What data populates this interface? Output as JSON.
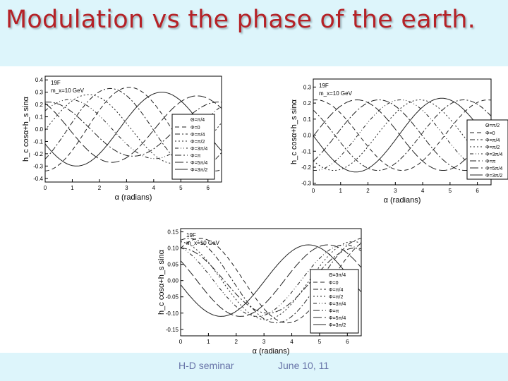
{
  "slide": {
    "title": "Modulation vs the phase of the earth.",
    "footer_left": "H-D seminar",
    "footer_date": "June 10, 11"
  },
  "chart_data": [
    {
      "type": "line",
      "ylabel": "h_c cosα+h_s sinα",
      "xlabel": "α (radians)",
      "annotation_lines": [
        "19F",
        "m_x=10 GeV"
      ],
      "xlim": [
        0,
        6.5
      ],
      "ylim": [
        -0.43,
        0.43
      ],
      "xticks": [
        0,
        1,
        2,
        3,
        4,
        5,
        6
      ],
      "yticks": [
        0.4,
        0.3,
        0.2,
        0.1,
        0.0,
        -0.1,
        -0.2,
        -0.3,
        -0.4
      ],
      "ytick_labels": [
        "0.4",
        "0.3",
        "0.2",
        "0.1",
        "0.0",
        "-0.1",
        "-0.2",
        "-0.3",
        "-0.4"
      ],
      "legend": {
        "position": "right",
        "header": "Θ=π/4",
        "entries": [
          "Φ=0",
          "Φ=π/4",
          "Φ=π/2",
          "Φ=3π/4",
          "Φ=π",
          "Φ=5π/4",
          "Φ=3π/2"
        ]
      },
      "series": [
        {
          "name": "Φ=0",
          "amplitude": 0.34,
          "peak_alpha": 3.1,
          "dash": "6 4"
        },
        {
          "name": "Φ=π/4",
          "amplitude": 0.33,
          "peak_alpha": 2.4,
          "dash": "7 3 2 3"
        },
        {
          "name": "Φ=π/2",
          "amplitude": 0.28,
          "peak_alpha": 1.6,
          "dash": "2 3"
        },
        {
          "name": "Φ=3π/4",
          "amplitude": 0.24,
          "peak_alpha": 0.9,
          "dash": "5 3 1 3 1 3"
        },
        {
          "name": "Φ=π",
          "amplitude": 0.22,
          "peak_alpha": 0.1,
          "dash": "9 3 2 3"
        },
        {
          "name": "Φ=5π/4",
          "amplitude": 0.27,
          "peak_alpha": 5.6,
          "dash": "12 4"
        },
        {
          "name": "Φ=3π/2",
          "amplitude": 0.3,
          "peak_alpha": 4.3,
          "dash": ""
        }
      ]
    },
    {
      "type": "line",
      "ylabel": "h_c cosα+h_s sinα",
      "xlabel": "α (radians)",
      "annotation_lines": [
        "19F",
        "m_x=10 GeV"
      ],
      "xlim": [
        0,
        6.5
      ],
      "ylim": [
        -0.31,
        0.35
      ],
      "xticks": [
        0,
        1,
        2,
        3,
        4,
        5,
        6
      ],
      "yticks": [
        0.3,
        0.2,
        0.1,
        0.0,
        -0.1,
        -0.2,
        -0.3
      ],
      "ytick_labels": [
        "0.3",
        "0.2",
        "0.1",
        "0.0",
        "-0.1",
        "-0.2",
        "-0.3"
      ],
      "legend": {
        "position": "right",
        "header": "Θ=π/2",
        "entries": [
          "Φ=0",
          "Φ=π/4",
          "Φ=π/2",
          "Φ=3π/4",
          "Φ=π",
          "Φ=5π/4",
          "Φ=3π/2"
        ]
      },
      "series": [
        {
          "name": "Φ=0",
          "amplitude": 0.22,
          "peak_alpha": 0.1,
          "dash": "6 4"
        },
        {
          "name": "Φ=π/4",
          "amplitude": 0.22,
          "peak_alpha": 5.5,
          "dash": "7 3 2 3"
        },
        {
          "name": "Φ=π/2",
          "amplitude": 0.22,
          "peak_alpha": 3.9,
          "dash": "2 3"
        },
        {
          "name": "Φ=3π/4",
          "amplitude": 0.22,
          "peak_alpha": 3.2,
          "dash": "5 3 1 3 1 3"
        },
        {
          "name": "Φ=π",
          "amplitude": 0.22,
          "peak_alpha": 2.4,
          "dash": "9 3 2 3"
        },
        {
          "name": "Φ=5π/4",
          "amplitude": 0.22,
          "peak_alpha": 1.6,
          "dash": "12 4"
        },
        {
          "name": "Φ=3π/2",
          "amplitude": 0.23,
          "peak_alpha": 4.7,
          "dash": ""
        }
      ]
    },
    {
      "type": "line",
      "ylabel": "h_c cosα+h_s sinα",
      "xlabel": "α (radians)",
      "annotation_lines": [
        "19F",
        "m_x=10 GeV"
      ],
      "xlim": [
        0,
        6.5
      ],
      "ylim": [
        -0.17,
        0.16
      ],
      "xticks": [
        0,
        1,
        2,
        3,
        4,
        5,
        6
      ],
      "yticks": [
        0.15,
        0.1,
        0.05,
        0.0,
        -0.05,
        -0.1,
        -0.15
      ],
      "ytick_labels": [
        "0.15",
        "0.10",
        "0.05",
        "0.00",
        "-0.05",
        "-0.10",
        "-0.15"
      ],
      "legend": {
        "position": "right",
        "header": "Θ=3π/4",
        "entries": [
          "Φ=0",
          "Φ=π/4",
          "Φ=π/2",
          "Φ=3π/4",
          "Φ=π",
          "Φ=5π/4",
          "Φ=3π/2"
        ]
      },
      "series": [
        {
          "name": "Φ=0",
          "amplitude": 0.13,
          "peak_alpha": 0.7,
          "dash": "6 4"
        },
        {
          "name": "Φ=π/4",
          "amplitude": 0.13,
          "peak_alpha": 0.3,
          "dash": "7 3 2 3"
        },
        {
          "name": "Φ=π/2",
          "amplitude": 0.12,
          "peak_alpha": 6.2,
          "dash": "2 3"
        },
        {
          "name": "Φ=3π/4",
          "amplitude": 0.11,
          "peak_alpha": 5.9,
          "dash": "5 3 1 3 1 3"
        },
        {
          "name": "Φ=π",
          "amplitude": 0.1,
          "peak_alpha": 0.0,
          "dash": "9 3 2 3"
        },
        {
          "name": "Φ=5π/4",
          "amplitude": 0.11,
          "peak_alpha": 5.3,
          "dash": "12 4"
        },
        {
          "name": "Φ=3π/2",
          "amplitude": 0.11,
          "peak_alpha": 4.6,
          "dash": ""
        }
      ]
    }
  ]
}
